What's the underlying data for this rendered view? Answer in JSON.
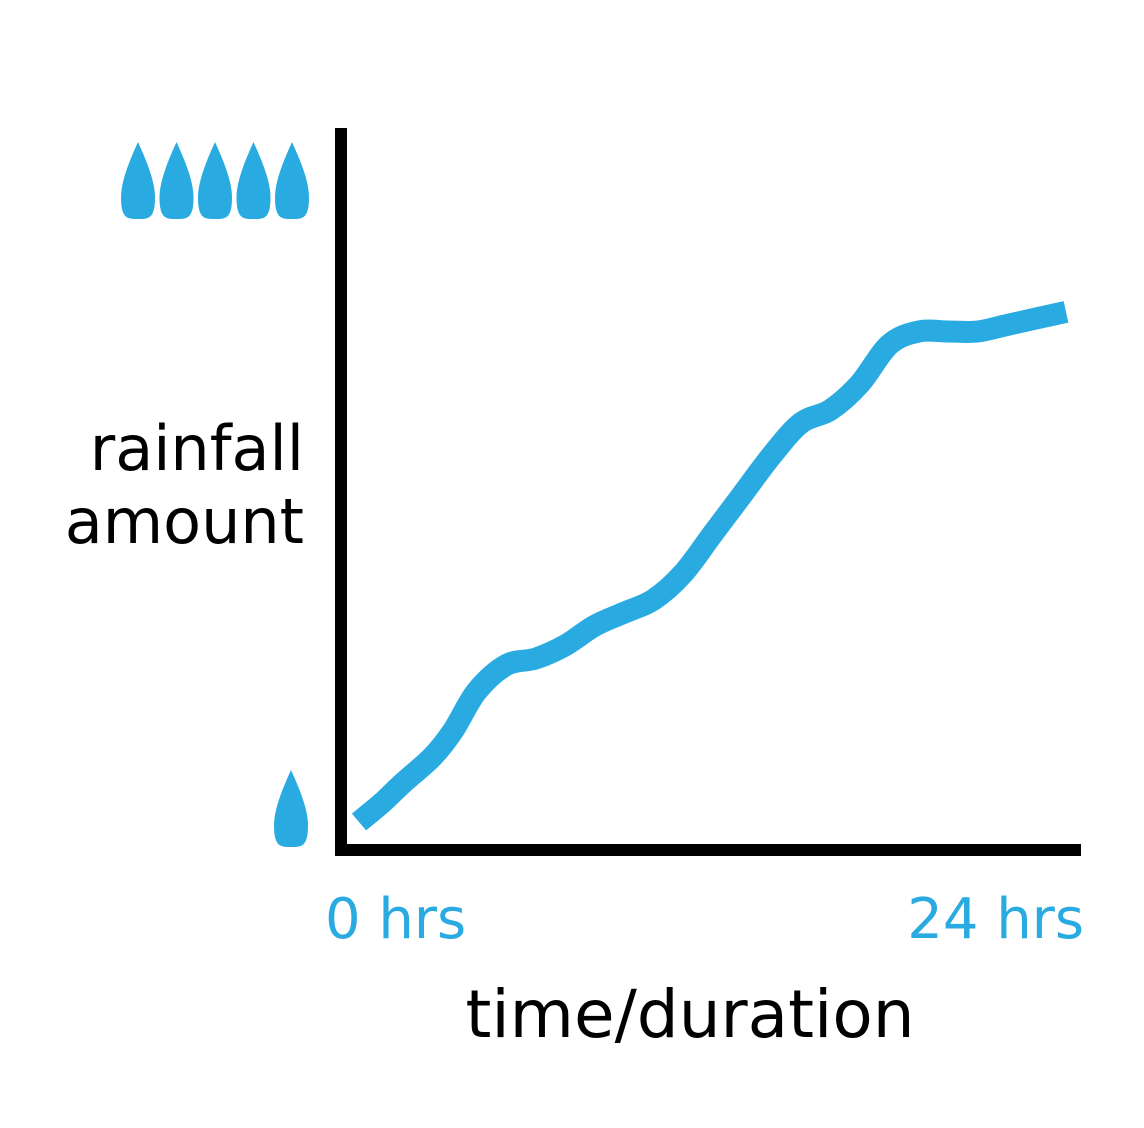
{
  "chart_data": {
    "type": "line",
    "xlabel": "time/duration",
    "ylabel_lines": [
      "rainfall",
      "amount"
    ],
    "x_tick_labels": [
      "0 hrs",
      "24 hrs"
    ],
    "xlim": [
      0,
      24
    ],
    "ylim": [
      0,
      1
    ],
    "y_axis_markers": {
      "low": {
        "icon": "raindrop-icon",
        "count": 1
      },
      "high": {
        "icon": "raindrop-icon",
        "count": 5
      }
    },
    "grid": false,
    "series": [
      {
        "x": [
          0,
          0.8,
          1.5,
          2.5,
          3.2,
          4.0,
          5.0,
          6.0,
          7.0,
          8.0,
          9.0,
          10.0,
          11.0,
          12.0,
          13.0,
          14.0,
          15.0,
          16.0,
          17.0,
          18.0,
          19.0,
          20.0,
          21.0,
          22.0,
          23.0,
          24.0
        ],
        "values": [
          0.0,
          0.03,
          0.06,
          0.1,
          0.14,
          0.2,
          0.24,
          0.25,
          0.27,
          0.3,
          0.32,
          0.34,
          0.38,
          0.44,
          0.5,
          0.56,
          0.61,
          0.63,
          0.67,
          0.73,
          0.75,
          0.75,
          0.75,
          0.76,
          0.77,
          0.78
        ]
      }
    ],
    "colors": {
      "line": "#29abe2",
      "axis": "#000000",
      "tick_label": "#29abe2",
      "icon": "#29abe2"
    }
  }
}
